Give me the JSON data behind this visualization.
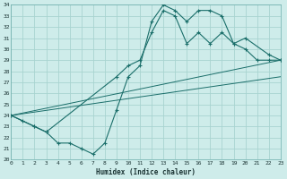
{
  "xlabel": "Humidex (Indice chaleur)",
  "bg_color": "#ceecea",
  "grid_color": "#a8d4d0",
  "line_color": "#1a6e6a",
  "x_min": 0,
  "x_max": 23,
  "y_min": 20,
  "y_max": 34,
  "x_ticks": [
    0,
    1,
    2,
    3,
    4,
    5,
    6,
    7,
    8,
    9,
    10,
    11,
    12,
    13,
    14,
    15,
    16,
    17,
    18,
    19,
    20,
    21,
    22,
    23
  ],
  "y_ticks": [
    20,
    21,
    22,
    23,
    24,
    25,
    26,
    27,
    28,
    29,
    30,
    31,
    32,
    33,
    34
  ],
  "line1_x": [
    0,
    1,
    2,
    3,
    4,
    5,
    6,
    7,
    8,
    9,
    10,
    11,
    12,
    13,
    14,
    15,
    16,
    17,
    18,
    19,
    20,
    21,
    22,
    23
  ],
  "line1_y": [
    24.0,
    23.5,
    23.0,
    22.5,
    21.5,
    21.5,
    21.0,
    20.5,
    21.5,
    24.5,
    27.5,
    28.5,
    32.5,
    34.0,
    33.5,
    32.5,
    33.5,
    33.5,
    33.0,
    30.5,
    30.0,
    29.0,
    29.0,
    29.0
  ],
  "line2_x": [
    0,
    2,
    3,
    9,
    10,
    11,
    12,
    13,
    14,
    15,
    16,
    17,
    18,
    19,
    20,
    22,
    23
  ],
  "line2_y": [
    24.0,
    23.0,
    22.5,
    27.5,
    28.5,
    29.0,
    31.5,
    33.5,
    33.0,
    30.5,
    31.5,
    30.5,
    31.5,
    30.5,
    31.0,
    29.5,
    29.0
  ],
  "line3_x": [
    0,
    23
  ],
  "line3_y": [
    24.0,
    29.0
  ],
  "line4_x": [
    0,
    23
  ],
  "line4_y": [
    24.0,
    27.5
  ]
}
